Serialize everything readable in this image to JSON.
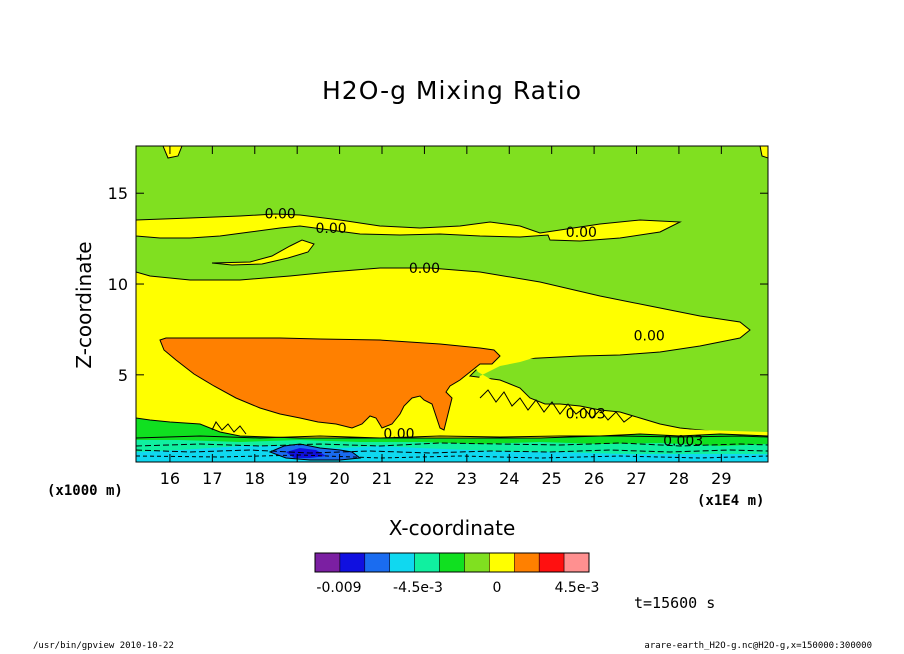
{
  "chart_data": {
    "type": "contour",
    "title": "H2O-g Mixing Ratio",
    "xlabel": "X-coordinate",
    "ylabel": "Z-coordinate",
    "x_unit_left": "(x1000 m)",
    "x_unit_right": "(x1E4 m)",
    "xlim": [
      15.2,
      30.1
    ],
    "ylim": [
      0.2,
      17.6
    ],
    "x_ticks": [
      "16",
      "17",
      "18",
      "19",
      "20",
      "21",
      "22",
      "23",
      "24",
      "25",
      "26",
      "27",
      "28",
      "29"
    ],
    "y_ticks": [
      "5",
      "10",
      "15"
    ],
    "contour_labels": [
      "0.00",
      "0.00",
      "0.00",
      "0.00",
      "0.00",
      "0.00",
      "0.003",
      "0.003"
    ],
    "colorbar": {
      "colors": [
        "#7b1fa2",
        "#1010e0",
        "#1a6cf0",
        "#10d8f0",
        "#10f0a0",
        "#10e020",
        "#80e020",
        "#ffff00",
        "#ff8000",
        "#ff1010",
        "#ff9090"
      ],
      "labels": [
        "-0.009",
        "-4.5e-3",
        "0",
        "4.5e-3"
      ]
    },
    "time": "t=15600 s"
  },
  "footer": {
    "left": "/usr/bin/gpview  2010-10-22",
    "right": "arare-earth_H2O-g.nc@H2O-g,x=150000:300000"
  }
}
